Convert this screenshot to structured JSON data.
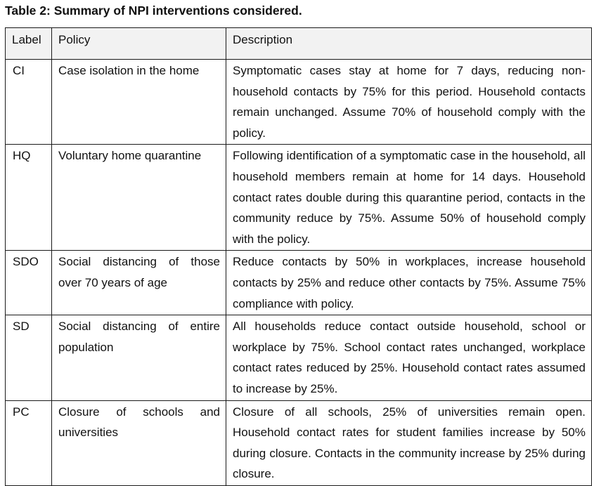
{
  "table": {
    "caption": "Table 2: Summary of NPI interventions considered.",
    "headers": {
      "label": "Label",
      "policy": "Policy",
      "description": "Description"
    },
    "rows": [
      {
        "label": "CI",
        "policy": "Case isolation in the home",
        "description": "Symptomatic cases stay at home for 7 days, reducing non-household contacts by 75% for this period. Household contacts remain unchanged. Assume 70% of household comply with the policy."
      },
      {
        "label": "HQ",
        "policy": "Voluntary home quarantine",
        "description": "Following identification of a symptomatic case in the household, all household members remain at home for 14 days. Household contact rates double during this quarantine period, contacts in the community reduce by 75%. Assume 50% of household comply with the policy."
      },
      {
        "label": "SDO",
        "policy": "Social distancing of those over 70 years of age",
        "description": "Reduce contacts by 50% in workplaces, increase household contacts by 25% and reduce other contacts by 75%. Assume 75% compliance with policy."
      },
      {
        "label": "SD",
        "policy": "Social distancing of entire population",
        "description": "All households reduce contact outside household, school or workplace by 75%. School contact rates unchanged, workplace contact rates reduced by 25%. Household contact rates assumed to increase by 25%."
      },
      {
        "label": "PC",
        "policy": "Closure of schools and universities",
        "description": "Closure of all schools, 25% of universities remain open. Household contact rates for student families increase by 50% during closure. Contacts in the community increase by 25% during closure."
      }
    ]
  },
  "colors": {
    "header_background": "#f2f2f2",
    "border": "#1a1a1a",
    "text": "#111111"
  }
}
